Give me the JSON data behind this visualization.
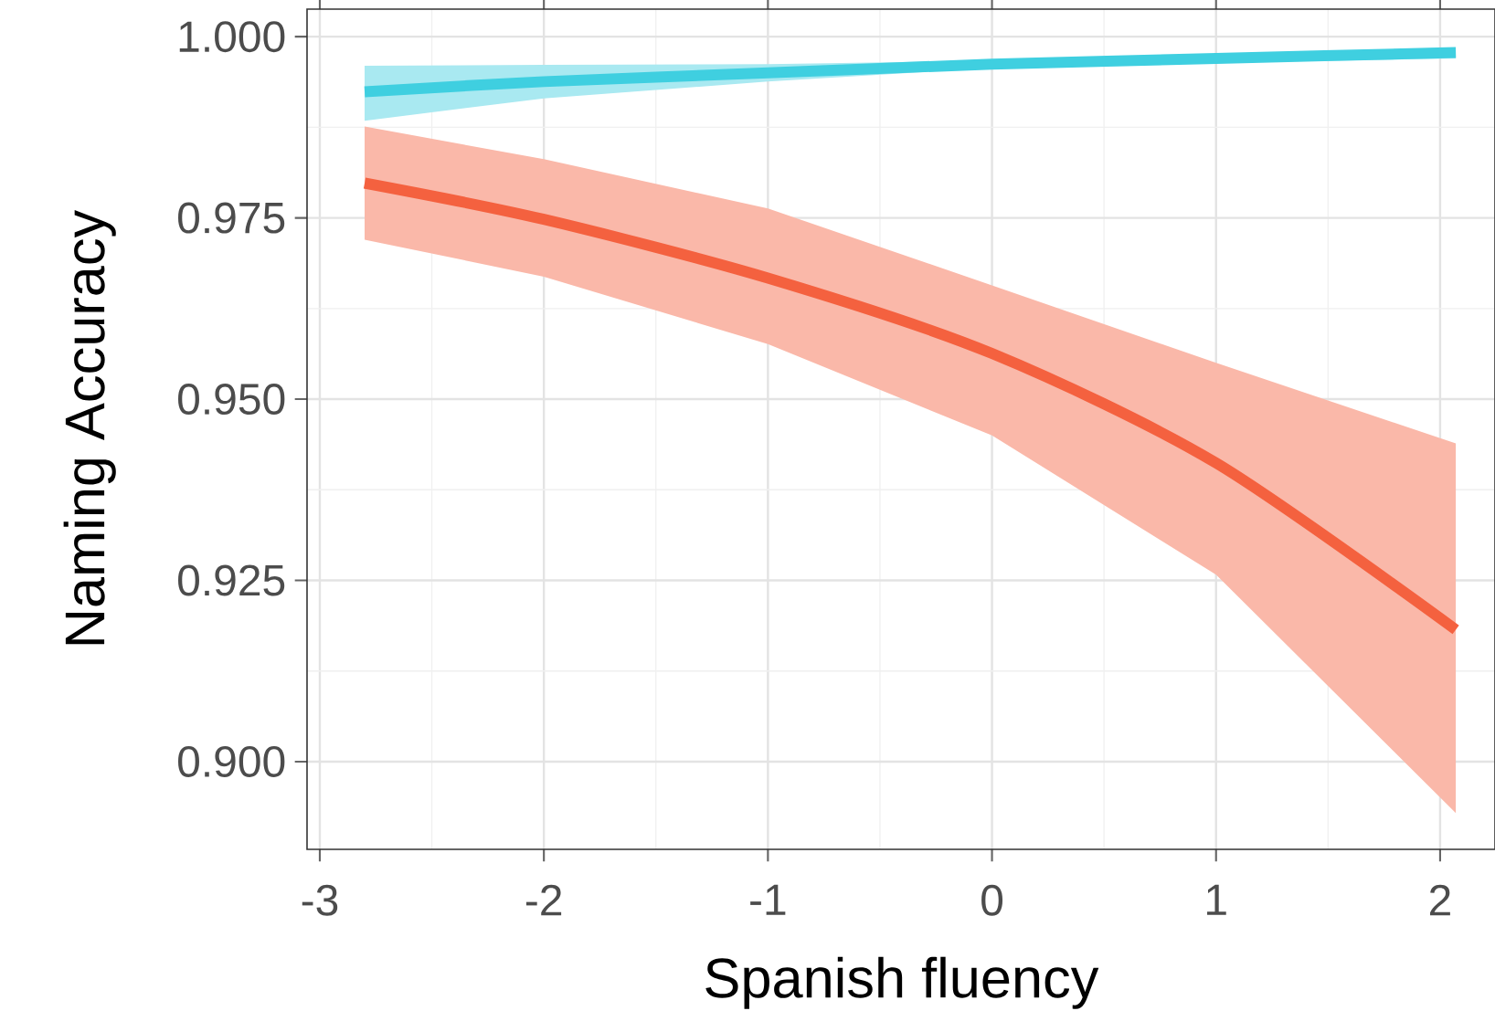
{
  "chart_data": {
    "type": "line",
    "xlabel": "Spanish fluency",
    "ylabel": "Naming Accuracy",
    "xlim": [
      -3.057,
      2.245
    ],
    "ylim": [
      0.8879,
      1.0038
    ],
    "xticks": [
      -3,
      -2,
      -1,
      0,
      1,
      2
    ],
    "yticks": [
      {
        "value": 0.9,
        "label": "0.900"
      },
      {
        "value": 0.925,
        "label": "0.925"
      },
      {
        "value": 0.95,
        "label": "0.950"
      },
      {
        "value": 0.975,
        "label": "0.975"
      },
      {
        "value": 1.0,
        "label": "1.000"
      }
    ],
    "grid": true,
    "series": [
      {
        "color": "#f4613f",
        "x": [
          -2.8,
          -2,
          -1,
          0,
          1,
          2.07
        ],
        "values": [
          0.9798,
          0.9748,
          0.9667,
          0.9563,
          0.9412,
          0.9182
        ],
        "lower": [
          0.972,
          0.9669,
          0.9576,
          0.945,
          0.9258,
          0.8929
        ],
        "upper": [
          0.9876,
          0.9831,
          0.9763,
          0.9657,
          0.955,
          0.9439
        ]
      },
      {
        "color": "#3fcfe0",
        "x": [
          -2.8,
          -2,
          -1,
          0,
          1,
          2.07
        ],
        "values": [
          0.9924,
          0.9938,
          0.995,
          0.9962,
          0.997,
          0.9978
        ],
        "lower": [
          0.9884,
          0.9915,
          0.9938,
          0.9957,
          0.9964,
          0.997
        ],
        "upper": [
          0.996,
          0.9961,
          0.9962,
          0.9967,
          0.9976,
          0.9985
        ]
      }
    ]
  }
}
